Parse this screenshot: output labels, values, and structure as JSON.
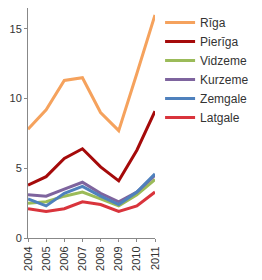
{
  "chart_data": {
    "type": "line",
    "categories": [
      "2004",
      "2005",
      "2006",
      "2007",
      "2008",
      "2009",
      "2010",
      "2011"
    ],
    "series": [
      {
        "name": "Rīga",
        "color": "#f5a25d",
        "values": [
          7.8,
          9.2,
          11.3,
          11.5,
          9.0,
          7.7,
          11.8,
          16.0
        ]
      },
      {
        "name": "Pierīga",
        "color": "#a50a0a",
        "values": [
          3.8,
          4.4,
          5.7,
          6.4,
          5.1,
          4.1,
          6.3,
          9.1
        ]
      },
      {
        "name": "Vidzeme",
        "color": "#9bbb59",
        "values": [
          2.5,
          2.6,
          3.0,
          3.3,
          2.8,
          2.3,
          3.1,
          4.2
        ]
      },
      {
        "name": "Kurzeme",
        "color": "#7e649e",
        "values": [
          3.1,
          3.0,
          3.5,
          4.0,
          3.2,
          2.6,
          3.3,
          4.5
        ]
      },
      {
        "name": "Zemgale",
        "color": "#4f81bd",
        "values": [
          2.8,
          2.3,
          3.2,
          3.7,
          3.0,
          2.4,
          3.3,
          4.6
        ]
      },
      {
        "name": "Latgale",
        "color": "#d9343c",
        "values": [
          2.1,
          1.9,
          2.1,
          2.6,
          2.4,
          1.9,
          2.3,
          3.3
        ]
      }
    ],
    "ylim": [
      0,
      16.5
    ],
    "yticks": [
      0,
      5,
      10,
      15
    ],
    "grid": false,
    "legend": "right"
  }
}
